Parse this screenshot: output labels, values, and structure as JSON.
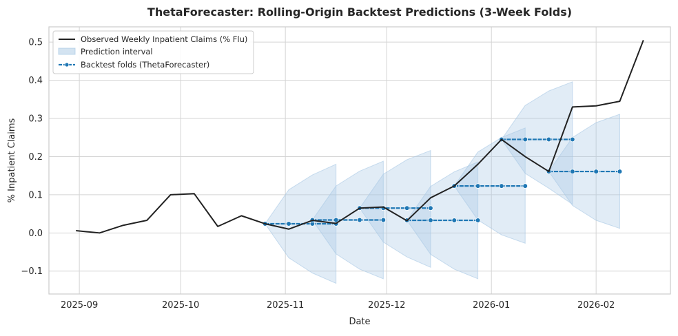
{
  "chart_data": {
    "type": "line",
    "title": "ThetaForecaster: Rolling-Origin Backtest Predictions (3-Week Folds)",
    "xlabel": "Date",
    "ylabel": "% Inpatient Claims",
    "xlim": [
      "2025-08-23",
      "2026-02-23"
    ],
    "ylim": [
      -0.16,
      0.54
    ],
    "x_ticks": [
      "2025-09-01",
      "2025-10-01",
      "2025-11-01",
      "2025-12-01",
      "2026-01-01",
      "2026-02-01"
    ],
    "x_tick_labels": [
      "2025-09",
      "2025-10",
      "2025-11",
      "2025-12",
      "2026-01",
      "2026-02"
    ],
    "y_ticks": [
      -0.1,
      0.0,
      0.1,
      0.2,
      0.3,
      0.4,
      0.5
    ],
    "y_tick_labels": [
      "−0.1",
      "0.0",
      "0.1",
      "0.2",
      "0.3",
      "0.4",
      "0.5"
    ],
    "grid": true,
    "legend": {
      "position": "top-left",
      "entries": [
        "Observed Weekly Inpatient Claims (% Flu)",
        "Prediction interval",
        "Backtest folds (ThetaForecaster)"
      ]
    },
    "colors": {
      "observed": "#222222",
      "forecast": "#1f77b4",
      "interval": "#a8c8e4"
    },
    "observed": {
      "name": "Observed Weekly Inpatient Claims (% Flu)",
      "x": [
        "2025-08-31",
        "2025-09-07",
        "2025-09-14",
        "2025-09-21",
        "2025-09-28",
        "2025-10-05",
        "2025-10-12",
        "2025-10-19",
        "2025-10-26",
        "2025-11-02",
        "2025-11-09",
        "2025-11-16",
        "2025-11-23",
        "2025-11-30",
        "2025-12-07",
        "2025-12-14",
        "2025-12-21",
        "2025-12-28",
        "2026-01-04",
        "2026-01-11",
        "2026-01-18",
        "2026-01-25",
        "2026-02-01",
        "2026-02-08",
        "2026-02-15"
      ],
      "y": [
        0.006,
        0.0,
        0.02,
        0.033,
        0.1,
        0.103,
        0.017,
        0.045,
        0.024,
        0.01,
        0.033,
        0.025,
        0.065,
        0.068,
        0.032,
        0.092,
        0.123,
        0.18,
        0.245,
        0.2,
        0.161,
        0.33,
        0.333,
        0.345,
        0.505
      ]
    },
    "folds": [
      {
        "x": [
          "2025-10-26",
          "2025-11-02",
          "2025-11-09",
          "2025-11-16"
        ],
        "y": [
          0.024,
          0.024,
          0.024,
          0.024
        ],
        "lower": [
          0.024,
          -0.065,
          -0.105,
          -0.132
        ],
        "upper": [
          0.024,
          0.113,
          0.152,
          0.18
        ]
      },
      {
        "x": [
          "2025-11-09",
          "2025-11-16",
          "2025-11-23",
          "2025-11-30"
        ],
        "y": [
          0.034,
          0.034,
          0.034,
          0.034
        ],
        "lower": [
          0.034,
          -0.055,
          -0.095,
          -0.12
        ],
        "upper": [
          0.034,
          0.123,
          0.162,
          0.188
        ]
      },
      {
        "x": [
          "2025-11-23",
          "2025-11-30",
          "2025-12-07",
          "2025-12-14"
        ],
        "y": [
          0.065,
          0.065,
          0.065,
          0.065
        ],
        "lower": [
          0.065,
          -0.024,
          -0.063,
          -0.09
        ],
        "upper": [
          0.065,
          0.154,
          0.192,
          0.216
        ]
      },
      {
        "x": [
          "2025-12-07",
          "2025-12-14",
          "2025-12-21",
          "2025-12-28"
        ],
        "y": [
          0.033,
          0.033,
          0.033,
          0.033
        ],
        "lower": [
          0.033,
          -0.056,
          -0.095,
          -0.12
        ],
        "upper": [
          0.033,
          0.122,
          0.16,
          0.186
        ]
      },
      {
        "x": [
          "2025-12-21",
          "2025-12-28",
          "2026-01-04",
          "2026-01-11"
        ],
        "y": [
          0.123,
          0.123,
          0.123,
          0.123
        ],
        "lower": [
          0.123,
          0.034,
          -0.005,
          -0.027
        ],
        "upper": [
          0.123,
          0.212,
          0.25,
          0.275
        ]
      },
      {
        "x": [
          "2026-01-04",
          "2026-01-11",
          "2026-01-18",
          "2026-01-25"
        ],
        "y": [
          0.245,
          0.245,
          0.245,
          0.245
        ],
        "lower": [
          0.245,
          0.156,
          0.117,
          0.075
        ],
        "upper": [
          0.245,
          0.334,
          0.372,
          0.396
        ]
      },
      {
        "x": [
          "2026-01-18",
          "2026-01-25",
          "2026-02-01",
          "2026-02-08"
        ],
        "y": [
          0.161,
          0.161,
          0.161,
          0.161
        ],
        "lower": [
          0.161,
          0.072,
          0.033,
          0.012
        ],
        "upper": [
          0.161,
          0.25,
          0.289,
          0.311
        ]
      }
    ]
  }
}
